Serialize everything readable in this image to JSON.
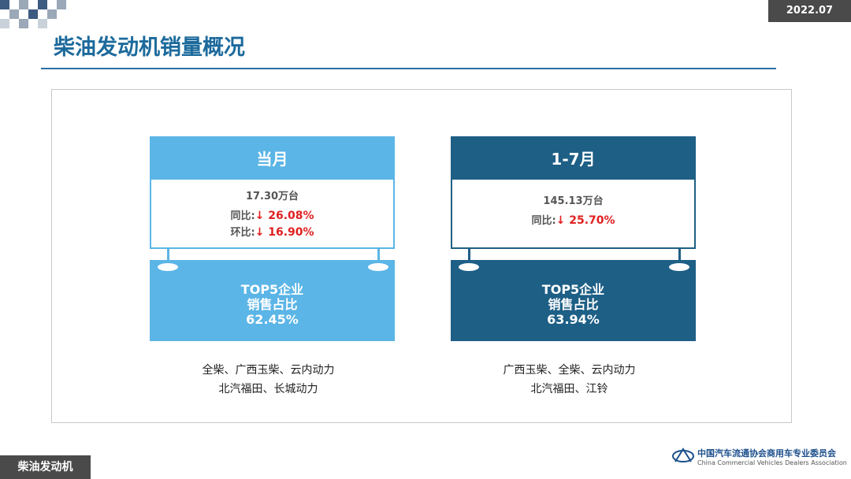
{
  "header": {
    "date": "2022.07",
    "title": "柴油发动机销量概况"
  },
  "panels": [
    {
      "heading": "当月",
      "volume": "17.30万台",
      "metrics": [
        {
          "label": "同比:",
          "value": "↓ 26.08%"
        },
        {
          "label": "环比:",
          "value": "↓ 16.90%"
        }
      ],
      "top5": {
        "line1": "TOP5企业",
        "line2": "销售占比",
        "share": "62.45%"
      },
      "companies": [
        "全柴、广西玉柴、云内动力",
        "北汽福田、长城动力"
      ]
    },
    {
      "heading": "1-7月",
      "volume": "145.13万台",
      "metrics": [
        {
          "label": "同比:",
          "value": "↓ 25.70%"
        }
      ],
      "top5": {
        "line1": "TOP5企业",
        "line2": "销售占比",
        "share": "63.94%"
      },
      "companies": [
        "广西玉柴、全柴、云内动力",
        "北汽福田、江铃"
      ]
    }
  ],
  "footer": {
    "section": "柴油发动机",
    "org_cn": "中国汽车流通协会商用车专业委员会",
    "org_en": "China Commercial Vehicles Dealers Association"
  }
}
